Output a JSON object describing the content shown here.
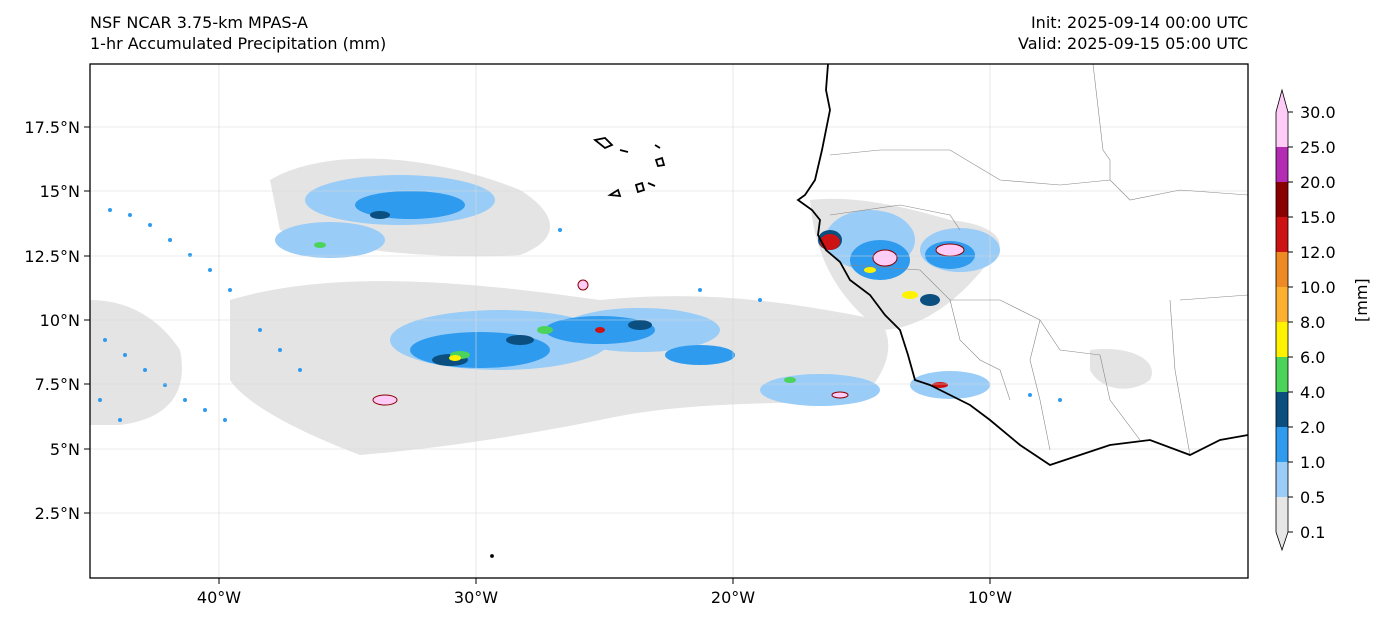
{
  "header": {
    "model": "NSF NCAR 3.75-km MPAS-A",
    "field": "1-hr Accumulated Precipitation (mm)",
    "init": "Init: 2025-09-14 00:00 UTC",
    "valid": "Valid: 2025-09-15 05:00 UTC"
  },
  "axes": {
    "lat_ticks": [
      "17.5°N",
      "15°N",
      "12.5°N",
      "10°N",
      "7.5°N",
      "5°N",
      "2.5°N"
    ],
    "lon_ticks": [
      "40°W",
      "30°W",
      "20°W",
      "10°W"
    ],
    "lon_range": [
      -45,
      0
    ],
    "lat_range": [
      0,
      20
    ]
  },
  "colorbar": {
    "unit": "[mm]",
    "levels": [
      "0.1",
      "0.5",
      "1.0",
      "2.0",
      "4.0",
      "6.0",
      "8.0",
      "10.0",
      "12.0",
      "15.0",
      "20.0",
      "25.0",
      "30.0"
    ],
    "colors": [
      "#e6e6e6",
      "#99ccf7",
      "#2e9bef",
      "#0a4f7f",
      "#4bd35a",
      "#fff200",
      "#fbb12f",
      "#ee8a23",
      "#cc1212",
      "#8a0000",
      "#b22bb2",
      "#ffccf7"
    ]
  },
  "map": {
    "background": "#ffffff",
    "no_rain_color": "#e4e4e4"
  }
}
